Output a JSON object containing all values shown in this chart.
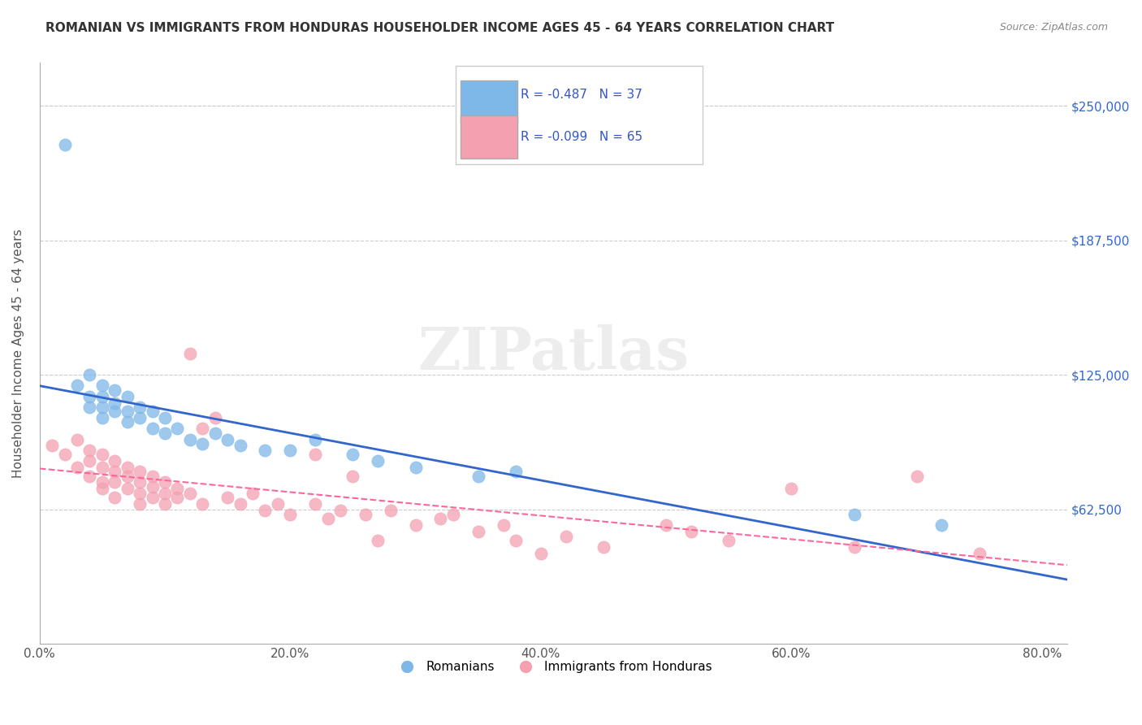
{
  "title": "ROMANIAN VS IMMIGRANTS FROM HONDURAS HOUSEHOLDER INCOME AGES 45 - 64 YEARS CORRELATION CHART",
  "source": "Source: ZipAtlas.com",
  "ylabel": "Householder Income Ages 45 - 64 years",
  "xlabel_ticks": [
    "0.0%",
    "20.0%",
    "40.0%",
    "60.0%",
    "80.0%"
  ],
  "xlabel_vals": [
    0.0,
    0.2,
    0.4,
    0.6,
    0.8
  ],
  "ytick_labels": [
    "$62,500",
    "$125,000",
    "$187,500",
    "$250,000"
  ],
  "ytick_vals": [
    62500,
    125000,
    187500,
    250000
  ],
  "xlim": [
    0.0,
    0.82
  ],
  "ylim": [
    0,
    270000
  ],
  "legend_r1": "R = -0.487",
  "legend_n1": "N = 37",
  "legend_r2": "R = -0.099",
  "legend_n2": "N = 65",
  "legend_label1": "Romanians",
  "legend_label2": "Immigrants from Honduras",
  "watermark": "ZIPatlas",
  "blue_color": "#7EB8E8",
  "pink_color": "#F4A0B0",
  "blue_line_color": "#3366CC",
  "pink_line_color": "#FF6699",
  "romanians_x": [
    0.02,
    0.03,
    0.04,
    0.04,
    0.04,
    0.05,
    0.05,
    0.05,
    0.05,
    0.06,
    0.06,
    0.06,
    0.07,
    0.07,
    0.07,
    0.08,
    0.08,
    0.09,
    0.09,
    0.1,
    0.1,
    0.11,
    0.12,
    0.13,
    0.14,
    0.15,
    0.16,
    0.18,
    0.2,
    0.22,
    0.25,
    0.27,
    0.3,
    0.35,
    0.38,
    0.65,
    0.72
  ],
  "romanians_y": [
    232000,
    120000,
    125000,
    115000,
    110000,
    120000,
    115000,
    110000,
    105000,
    118000,
    112000,
    108000,
    115000,
    108000,
    103000,
    110000,
    105000,
    108000,
    100000,
    105000,
    98000,
    100000,
    95000,
    93000,
    98000,
    95000,
    92000,
    90000,
    90000,
    95000,
    88000,
    85000,
    82000,
    78000,
    80000,
    60000,
    55000
  ],
  "honduras_x": [
    0.01,
    0.02,
    0.03,
    0.03,
    0.04,
    0.04,
    0.04,
    0.05,
    0.05,
    0.05,
    0.05,
    0.06,
    0.06,
    0.06,
    0.06,
    0.07,
    0.07,
    0.07,
    0.08,
    0.08,
    0.08,
    0.08,
    0.09,
    0.09,
    0.09,
    0.1,
    0.1,
    0.1,
    0.11,
    0.11,
    0.12,
    0.12,
    0.13,
    0.13,
    0.14,
    0.15,
    0.16,
    0.17,
    0.18,
    0.19,
    0.2,
    0.22,
    0.22,
    0.23,
    0.24,
    0.25,
    0.26,
    0.27,
    0.28,
    0.3,
    0.32,
    0.33,
    0.35,
    0.37,
    0.38,
    0.4,
    0.42,
    0.45,
    0.5,
    0.52,
    0.55,
    0.6,
    0.65,
    0.7,
    0.75
  ],
  "honduras_y": [
    92000,
    88000,
    95000,
    82000,
    90000,
    85000,
    78000,
    88000,
    82000,
    75000,
    72000,
    85000,
    80000,
    75000,
    68000,
    82000,
    78000,
    72000,
    80000,
    75000,
    70000,
    65000,
    78000,
    73000,
    68000,
    75000,
    70000,
    65000,
    72000,
    68000,
    135000,
    70000,
    100000,
    65000,
    105000,
    68000,
    65000,
    70000,
    62000,
    65000,
    60000,
    88000,
    65000,
    58000,
    62000,
    78000,
    60000,
    48000,
    62000,
    55000,
    58000,
    60000,
    52000,
    55000,
    48000,
    42000,
    50000,
    45000,
    55000,
    52000,
    48000,
    72000,
    45000,
    78000,
    42000
  ]
}
